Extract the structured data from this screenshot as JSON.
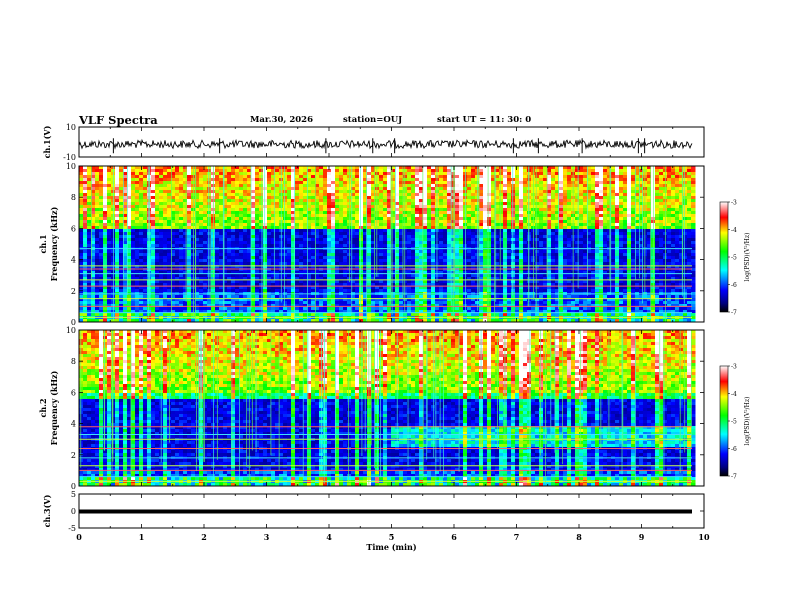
{
  "header": {
    "title": "VLF Spectra",
    "date": "Mar.30, 2026",
    "station": "station=OUJ",
    "start": "start  UT =  11: 30: 0"
  },
  "chart_data": [
    {
      "type": "line",
      "panel": "ch1-waveform",
      "ylabel": "ch.1(V)",
      "ylim": [
        -10,
        10
      ],
      "ytick_labels": [
        "10",
        "-10"
      ],
      "xlim": [
        0,
        10
      ],
      "baseline": -1.5,
      "noise_amplitude": 1.2,
      "spike_times_min": [
        0.55,
        2.25,
        3.95,
        4.7,
        5.05,
        6.95,
        7.35,
        8.05,
        8.95,
        9.05
      ]
    },
    {
      "type": "heatmap",
      "panel": "ch1-spectrogram",
      "ylabel": "ch.1\nFrequency (kHz)",
      "ylabel_top": "ch.1",
      "ylabel_bottom": "Frequency (kHz)",
      "ylim": [
        0,
        10
      ],
      "ytick_labels": [
        "0",
        "2",
        "4",
        "6",
        "8",
        "10"
      ],
      "xlim": [
        0,
        10
      ],
      "colorbar": {
        "label": "log(PSD)(V²/Hz)",
        "range": [
          -7,
          -3
        ],
        "tick_labels": [
          "-7",
          "-6",
          "-5",
          "-4",
          "-3"
        ]
      },
      "band_lines_khz": [
        0.3,
        0.6,
        1.0,
        1.5,
        1.8,
        2.3,
        2.7,
        3.1,
        3.4,
        3.6,
        4.7
      ],
      "quiet_band_khz": [
        2.0,
        6.0
      ]
    },
    {
      "type": "heatmap",
      "panel": "ch2-spectrogram",
      "ylabel": "ch.2\nFrequency (kHz)",
      "ylabel_top": "ch.2",
      "ylabel_bottom": "Frequency (kHz)",
      "ylim": [
        0,
        10
      ],
      "ytick_labels": [
        "0",
        "2",
        "4",
        "6",
        "8",
        "10"
      ],
      "xlim": [
        0,
        10
      ],
      "colorbar": {
        "label": "log(PSD)(V²/Hz)",
        "range": [
          -7,
          -3
        ],
        "tick_labels": [
          "-7",
          "-6",
          "-5",
          "-4",
          "-3"
        ]
      },
      "band_lines_khz": [
        0.3,
        0.6,
        1.0,
        1.3,
        1.8,
        2.4,
        3.0,
        3.3,
        3.8
      ],
      "quiet_band_khz": [
        1.0,
        5.5
      ]
    },
    {
      "type": "line",
      "panel": "ch3-waveform",
      "ylabel": "ch.3(V)",
      "ylim": [
        -5,
        5
      ],
      "ytick_labels": [
        "5",
        "0",
        "-5"
      ],
      "xlim": [
        0,
        10
      ],
      "values_constant": 0,
      "xlabel": "Time (min)",
      "xtick_labels": [
        "0",
        "1",
        "2",
        "3",
        "4",
        "5",
        "6",
        "7",
        "8",
        "9",
        "10"
      ]
    }
  ]
}
